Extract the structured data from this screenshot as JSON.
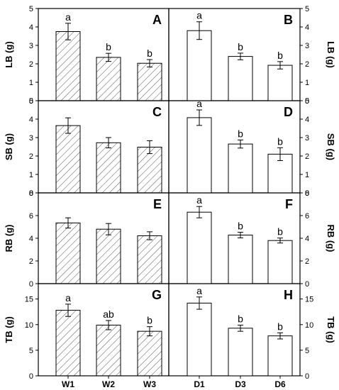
{
  "chart_data": [
    {
      "type": "bar",
      "panel": "A",
      "ylabel": "LB (g)",
      "categories": [
        "W1",
        "W2",
        "W3"
      ],
      "values": [
        3.75,
        2.35,
        2.03
      ],
      "errors": [
        0.45,
        0.22,
        0.2
      ],
      "sig": [
        "a",
        "b",
        "b"
      ],
      "ylim": [
        0,
        5
      ],
      "yticks": [
        0,
        1,
        2,
        3,
        4,
        5
      ],
      "hatched": true
    },
    {
      "type": "bar",
      "panel": "B",
      "ylabel": "LB (g)",
      "categories": [
        "D1",
        "D3",
        "D6"
      ],
      "values": [
        3.8,
        2.4,
        1.92
      ],
      "errors": [
        0.48,
        0.18,
        0.2
      ],
      "sig": [
        "a",
        "b",
        "b"
      ],
      "ylim": [
        0,
        5
      ],
      "yticks": [
        0,
        1,
        2,
        3,
        4,
        5
      ],
      "hatched": false
    },
    {
      "type": "bar",
      "panel": "C",
      "ylabel": "SB (g)",
      "categories": [
        "W1",
        "W2",
        "W3"
      ],
      "values": [
        3.65,
        2.72,
        2.48
      ],
      "errors": [
        0.42,
        0.28,
        0.35
      ],
      "sig": [],
      "ylim": [
        0,
        5
      ],
      "yticks": [
        0,
        1,
        2,
        3,
        4,
        5
      ],
      "hatched": true
    },
    {
      "type": "bar",
      "panel": "D",
      "ylabel": "SB (g)",
      "categories": [
        "D1",
        "D3",
        "D6"
      ],
      "values": [
        4.08,
        2.65,
        2.1
      ],
      "errors": [
        0.42,
        0.22,
        0.35
      ],
      "sig": [
        "a",
        "b",
        "b"
      ],
      "ylim": [
        0,
        5
      ],
      "yticks": [
        0,
        1,
        2,
        3,
        4,
        5
      ],
      "hatched": false
    },
    {
      "type": "bar",
      "panel": "E",
      "ylabel": "RB (g)",
      "categories": [
        "W1",
        "W2",
        "W3"
      ],
      "values": [
        5.35,
        4.8,
        4.22
      ],
      "errors": [
        0.45,
        0.5,
        0.35
      ],
      "sig": [],
      "ylim": [
        0,
        8
      ],
      "yticks": [
        0,
        2,
        4,
        6,
        8
      ],
      "hatched": true
    },
    {
      "type": "bar",
      "panel": "F",
      "ylabel": "RB (g)",
      "categories": [
        "D1",
        "D3",
        "D6"
      ],
      "values": [
        6.3,
        4.28,
        3.8
      ],
      "errors": [
        0.5,
        0.25,
        0.22
      ],
      "sig": [
        "a",
        "b",
        "b"
      ],
      "ylim": [
        0,
        8
      ],
      "yticks": [
        0,
        2,
        4,
        6,
        8
      ],
      "hatched": false
    },
    {
      "type": "bar",
      "panel": "G",
      "ylabel": "TB (g)",
      "categories": [
        "W1",
        "W2",
        "W3"
      ],
      "values": [
        12.8,
        9.9,
        8.7
      ],
      "errors": [
        1.2,
        0.9,
        0.9
      ],
      "sig": [
        "a",
        "ab",
        "b"
      ],
      "ylim": [
        0,
        18
      ],
      "yticks": [
        0,
        5,
        10,
        15
      ],
      "hatched": true
    },
    {
      "type": "bar",
      "panel": "H",
      "ylabel": "TB (g)",
      "categories": [
        "D1",
        "D3",
        "D6"
      ],
      "values": [
        14.2,
        9.3,
        7.8
      ],
      "errors": [
        1.2,
        0.6,
        0.6
      ],
      "sig": [
        "a",
        "b",
        "b"
      ],
      "ylim": [
        0,
        18
      ],
      "yticks": [
        0,
        5,
        10,
        15
      ],
      "hatched": false
    }
  ]
}
